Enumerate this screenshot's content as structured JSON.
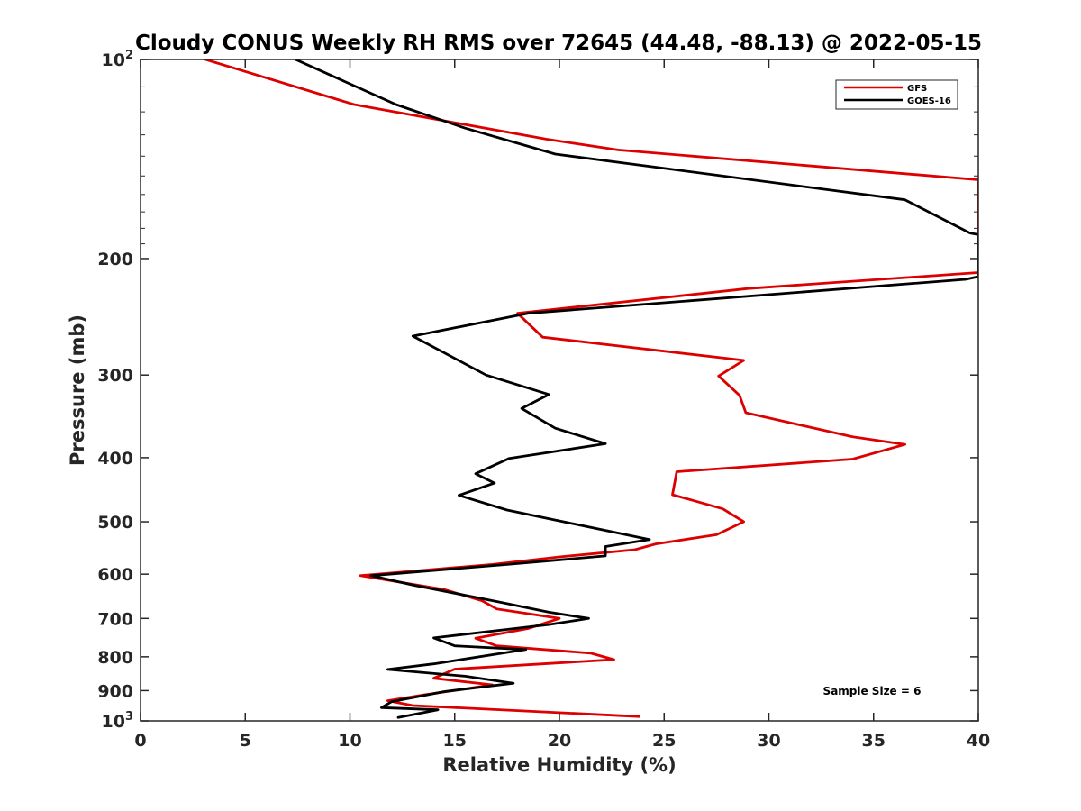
{
  "chart_data": {
    "type": "line",
    "title": "Cloudy CONUS Weekly RH RMS over 72645 (44.48, -88.13) @ 2022-05-15",
    "xlabel": "Relative Humidity (%)",
    "ylabel": "Pressure (mb)",
    "xlim": [
      0,
      40
    ],
    "ylim": [
      100,
      1000
    ],
    "y_scale": "log",
    "y_reversed": true,
    "x_ticks": [
      0,
      5,
      10,
      15,
      20,
      25,
      30,
      35,
      40
    ],
    "y_ticks": [
      {
        "value": 100,
        "base": "10",
        "exp": "2"
      },
      {
        "value": 200,
        "label": "200"
      },
      {
        "value": 300,
        "label": "300"
      },
      {
        "value": 400,
        "label": "400"
      },
      {
        "value": 500,
        "label": "500"
      },
      {
        "value": 600,
        "label": "600"
      },
      {
        "value": 700,
        "label": "700"
      },
      {
        "value": 800,
        "label": "800"
      },
      {
        "value": 900,
        "label": "900"
      },
      {
        "value": 1000,
        "base": "10",
        "exp": "3"
      }
    ],
    "grid": false,
    "legend_position": "top-right",
    "annotation": "Sample Size = 6",
    "series": [
      {
        "name": "GFS",
        "color": "#dd0000",
        "points": [
          [
            3.1,
            100
          ],
          [
            10.2,
            117
          ],
          [
            19.4,
            132
          ],
          [
            22.8,
            137
          ],
          [
            40.0,
            152
          ],
          [
            40.0,
            210
          ],
          [
            29.0,
            222
          ],
          [
            18.0,
            242
          ],
          [
            19.2,
            263
          ],
          [
            28.8,
            285
          ],
          [
            27.6,
            301
          ],
          [
            28.6,
            322
          ],
          [
            28.9,
            342
          ],
          [
            34.0,
            372
          ],
          [
            36.5,
            382
          ],
          [
            34.0,
            402
          ],
          [
            25.6,
            420
          ],
          [
            25.4,
            455
          ],
          [
            27.8,
            478
          ],
          [
            28.8,
            500
          ],
          [
            27.5,
            523
          ],
          [
            24.6,
            540
          ],
          [
            23.6,
            551
          ],
          [
            20.0,
            565
          ],
          [
            16.8,
            580
          ],
          [
            10.5,
            603
          ],
          [
            14.5,
            633
          ],
          [
            16.3,
            658
          ],
          [
            17.0,
            677
          ],
          [
            20.0,
            700
          ],
          [
            18.5,
            725
          ],
          [
            16.0,
            750
          ],
          [
            17.0,
            770
          ],
          [
            21.5,
            790
          ],
          [
            22.6,
            808
          ],
          [
            15.0,
            835
          ],
          [
            14.0,
            862
          ],
          [
            16.8,
            882
          ],
          [
            13.5,
            914
          ],
          [
            11.8,
            932
          ],
          [
            13.0,
            948
          ],
          [
            18.0,
            965
          ],
          [
            23.8,
            985
          ]
        ]
      },
      {
        "name": "GOES-16",
        "color": "#000000",
        "points": [
          [
            7.4,
            100
          ],
          [
            12.2,
            117
          ],
          [
            15.5,
            127
          ],
          [
            19.8,
            139
          ],
          [
            36.5,
            163
          ],
          [
            39.6,
            183
          ],
          [
            40.0,
            184
          ],
          [
            40.0,
            213
          ],
          [
            39.4,
            215
          ],
          [
            18.5,
            242
          ],
          [
            13.0,
            262
          ],
          [
            16.5,
            300
          ],
          [
            19.5,
            321
          ],
          [
            18.2,
            337
          ],
          [
            19.8,
            361
          ],
          [
            22.2,
            381
          ],
          [
            17.6,
            401
          ],
          [
            16.0,
            423
          ],
          [
            16.9,
            437
          ],
          [
            15.2,
            456
          ],
          [
            17.5,
            480
          ],
          [
            24.3,
            532
          ],
          [
            22.2,
            545
          ],
          [
            22.2,
            563
          ],
          [
            17.5,
            580
          ],
          [
            11.0,
            603
          ],
          [
            13.0,
            623
          ],
          [
            17.0,
            660
          ],
          [
            19.5,
            685
          ],
          [
            21.4,
            700
          ],
          [
            19.5,
            715
          ],
          [
            14.0,
            749
          ],
          [
            15.0,
            770
          ],
          [
            18.4,
            780
          ],
          [
            14.0,
            820
          ],
          [
            11.8,
            836
          ],
          [
            15.5,
            856
          ],
          [
            17.8,
            877
          ],
          [
            14.5,
            903
          ],
          [
            12.0,
            935
          ],
          [
            11.5,
            955
          ],
          [
            14.2,
            962
          ],
          [
            12.3,
            988
          ]
        ]
      }
    ]
  }
}
